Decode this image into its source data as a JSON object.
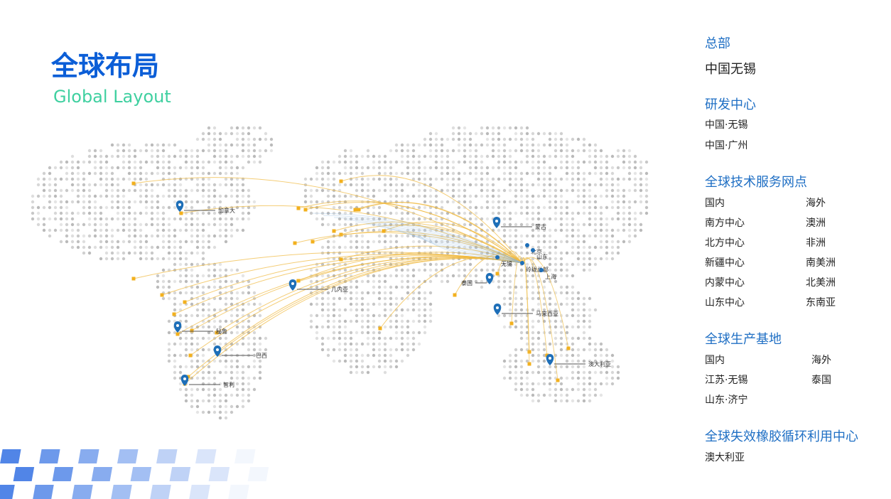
{
  "header": {
    "title": "全球布局",
    "subtitle": "Global Layout"
  },
  "map": {
    "labels": [
      "加拿大",
      "几内亚",
      "秘鲁",
      "巴西",
      "智利",
      "泰国",
      "马来西亚",
      "澳大利亚",
      "蒙古",
      "无锡",
      "玲珑总部",
      "北京",
      "山东",
      "上海"
    ]
  },
  "panel": {
    "headquarters": {
      "heading": "总部",
      "items": [
        "中国无锡"
      ]
    },
    "rd": {
      "heading": "研发中心",
      "items": [
        "中国·无锡",
        "中国·广州"
      ]
    },
    "service": {
      "heading": "全球技术服务网点",
      "left": [
        "国内",
        "南方中心",
        "北方中心",
        "新疆中心",
        "内蒙中心",
        "山东中心"
      ],
      "right": [
        "海外",
        "澳洲",
        "非洲",
        "南美洲",
        "北美洲",
        "东南亚"
      ]
    },
    "production": {
      "heading": "全球生产基地",
      "left": [
        "国内",
        "江苏·无锡",
        "山东·济宁"
      ],
      "right": [
        "海外",
        "泰国"
      ]
    },
    "recycling": {
      "heading": "全球失效橡胶循环利用中心",
      "items": [
        "澳大利亚"
      ]
    }
  }
}
